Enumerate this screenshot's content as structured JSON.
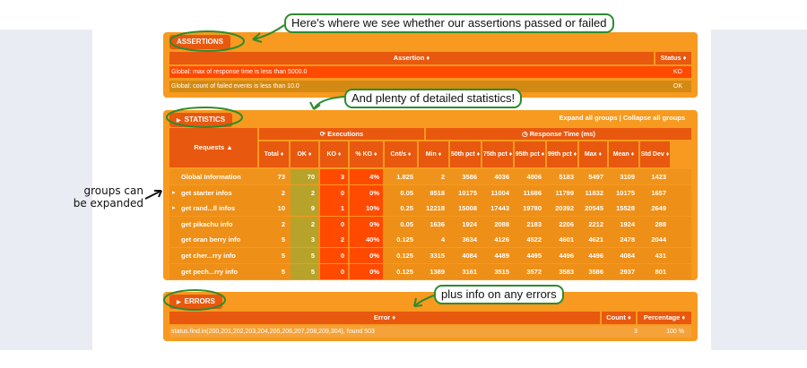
{
  "assertions": {
    "title": "ASSERTIONS",
    "columns": [
      "Assertion ♦",
      "Status ♦"
    ],
    "rows": [
      {
        "text": "Global: max of response time is less than 5000.0",
        "status": "KO"
      },
      {
        "text": "Global: count of failed events is less than 10.0",
        "status": "OK"
      }
    ]
  },
  "statistics": {
    "title": "STATISTICS",
    "expand_label": "Expand all groups",
    "sep": "|",
    "collapse_label": "Collapse all groups",
    "requests_header": "Requests ▲",
    "executions_header": "Executions",
    "response_header": "Response Time (ms)",
    "columns": [
      "Total ♦",
      "OK ♦",
      "KO ♦",
      "% KO ♦",
      "Cnt/s ♦",
      "Min ♦",
      "50th pct ♦",
      "75th pct ♦",
      "95th pct ♦",
      "99th pct ♦",
      "Max ♦",
      "Mean ♦",
      "Std Dev ♦"
    ],
    "rows": [
      {
        "name": "Global Information",
        "vals": [
          "73",
          "70",
          "3",
          "4%",
          "1.825",
          "2",
          "3586",
          "4036",
          "4806",
          "5183",
          "5497",
          "3109",
          "1423"
        ],
        "expandable": false
      },
      {
        "name": "get starter infos",
        "vals": [
          "2",
          "2",
          "0",
          "0%",
          "0.05",
          "8518",
          "10175",
          "11004",
          "11686",
          "11799",
          "11832",
          "10175",
          "1657"
        ],
        "expandable": true
      },
      {
        "name": "get rand...ll infos",
        "vals": [
          "10",
          "9",
          "1",
          "10%",
          "0.25",
          "12218",
          "15008",
          "17443",
          "19780",
          "20392",
          "20545",
          "15528",
          "2649"
        ],
        "expandable": true
      },
      {
        "name": "get pikachu info",
        "vals": [
          "2",
          "2",
          "0",
          "0%",
          "0.05",
          "1636",
          "1924",
          "2088",
          "2183",
          "2206",
          "2212",
          "1924",
          "288"
        ],
        "expandable": false
      },
      {
        "name": "get oran berry info",
        "vals": [
          "5",
          "3",
          "2",
          "40%",
          "0.125",
          "4",
          "3634",
          "4126",
          "4522",
          "4601",
          "4621",
          "2478",
          "2044"
        ],
        "expandable": false
      },
      {
        "name": "get cher...rry info",
        "vals": [
          "5",
          "5",
          "0",
          "0%",
          "0.125",
          "3315",
          "4084",
          "4489",
          "4495",
          "4496",
          "4496",
          "4084",
          "431"
        ],
        "expandable": false
      },
      {
        "name": "get pech...rry info",
        "vals": [
          "5",
          "5",
          "0",
          "0%",
          "0.125",
          "1389",
          "3161",
          "3515",
          "3572",
          "3583",
          "3586",
          "2937",
          "801"
        ],
        "expandable": false
      }
    ]
  },
  "errors": {
    "title": "ERRORS",
    "columns": [
      "Error ♦",
      "Count ♦",
      "Percentage ♦"
    ],
    "rows": [
      {
        "text": "status.find.in(200,201,202,203,204,205,206,207,208,209,304), found 503",
        "count": "3",
        "pct": "100 %"
      }
    ]
  },
  "annotations": {
    "top": "Here's where we see whether our assertions passed or failed",
    "middle": "And plenty of detailed statistics!",
    "left_line1": "groups can",
    "left_line2": "be expanded",
    "bottom": "plus info on any errors"
  },
  "colors": {
    "panel": "#f79a1f",
    "header": "#e8580e",
    "ko_red": "#ff4a00",
    "ok_olive": "#b7a32a",
    "callout_green": "#2e8b2e"
  }
}
